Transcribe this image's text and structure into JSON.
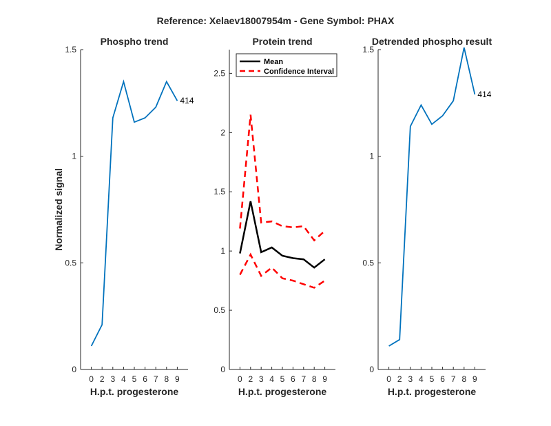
{
  "figure_title": "Reference:  Xelaev18007954m - Gene Symbol:  PHAX",
  "colors": {
    "series_blue": "#0072BD",
    "mean_black": "#000000",
    "ci_red": "#FF0000",
    "axis": "#262626"
  },
  "chart_data": [
    {
      "type": "line",
      "title": "Phospho trend",
      "xlabel": "H.p.t. progesterone",
      "ylabel": "Normalized signal",
      "categories": [
        "0",
        "2",
        "3",
        "4",
        "5",
        "6",
        "7",
        "8",
        "9"
      ],
      "ylim": [
        0,
        1.5
      ],
      "yticks": [
        0,
        0.5,
        1,
        1.5
      ],
      "ytick_labels": [
        "0",
        "0.5",
        "1",
        "1.5"
      ],
      "series": [
        {
          "name": "414",
          "values": [
            0.11,
            0.21,
            1.18,
            1.35,
            1.16,
            1.18,
            1.23,
            1.35,
            1.26
          ]
        }
      ],
      "annotation": "414"
    },
    {
      "type": "line",
      "title": "Protein trend",
      "xlabel": "H.p.t. progesterone",
      "ylabel": "",
      "categories": [
        "0",
        "2",
        "3",
        "4",
        "5",
        "6",
        "7",
        "8",
        "9"
      ],
      "ylim": [
        0,
        2.7
      ],
      "yticks": [
        0,
        0.5,
        1,
        1.5,
        2,
        2.5
      ],
      "ytick_labels": [
        "0",
        "0.5",
        "1",
        "1.5",
        "2",
        "2.5"
      ],
      "series": [
        {
          "name": "Mean",
          "values": [
            0.98,
            1.42,
            0.99,
            1.03,
            0.96,
            0.94,
            0.93,
            0.86,
            0.93
          ]
        },
        {
          "name": "Confidence Interval",
          "values": [
            1.19,
            2.15,
            1.24,
            1.25,
            1.21,
            1.2,
            1.21,
            1.09,
            1.17
          ]
        },
        {
          "name": "Confidence Interval (lower)",
          "values": [
            0.8,
            0.97,
            0.79,
            0.86,
            0.77,
            0.75,
            0.72,
            0.69,
            0.75
          ]
        }
      ],
      "legend": [
        "Mean",
        "Confidence Interval"
      ],
      "legend_position": "top-left"
    },
    {
      "type": "line",
      "title": "Detrended phospho result",
      "xlabel": "H.p.t. progesterone",
      "ylabel": "",
      "categories": [
        "0",
        "2",
        "3",
        "4",
        "5",
        "6",
        "7",
        "8",
        "9"
      ],
      "ylim": [
        0,
        1.5
      ],
      "yticks": [
        0,
        0.5,
        1,
        1.5
      ],
      "ytick_labels": [
        "0",
        "0.5",
        "1",
        "1.5"
      ],
      "series": [
        {
          "name": "414",
          "values": [
            0.11,
            0.14,
            1.14,
            1.24,
            1.15,
            1.19,
            1.26,
            1.51,
            1.29
          ]
        }
      ],
      "annotation": "414"
    }
  ]
}
